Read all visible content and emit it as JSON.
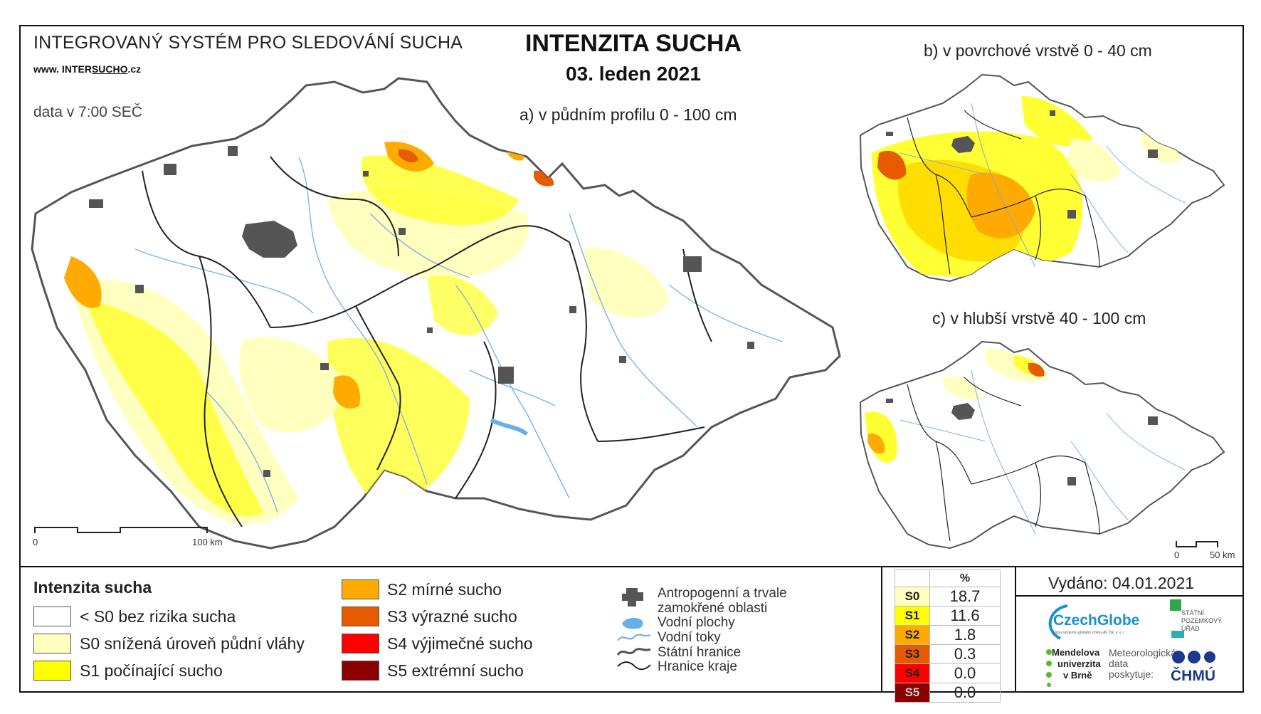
{
  "header": {
    "system_title": "INTEGROVANÝ SYSTÉM PRO SLEDOVÁNÍ SUCHA",
    "website_prefix": "www. INTER",
    "website_brand": "SUCHO",
    "website_suffix": ".cz",
    "data_time": "data v 7:00 SEČ",
    "main_title": "INTENZITA SUCHA",
    "date": "03. leden 2021"
  },
  "maps": {
    "a_label": "a) v půdním profilu 0 - 100 cm",
    "b_label": "b) v povrchové vrstvě 0 - 40 cm",
    "c_label": "c) v hlubší vrstvě 40 - 100 cm",
    "scale_main": {
      "start": "0",
      "end": "100 km"
    },
    "scale_small": {
      "start": "0",
      "end": "50 km"
    }
  },
  "legend": {
    "title": "Intenzita sucha",
    "classes": [
      {
        "label": "< S0 bez rizika sucha",
        "color": "#ffffff"
      },
      {
        "label": "S0 snížená úroveň půdní vláhy",
        "color": "#ffffc0"
      },
      {
        "label": "S1 počínající sucho",
        "color": "#ffff00"
      },
      {
        "label": "S2 mírné sucho",
        "color": "#ffaa00"
      },
      {
        "label": "S3 výrazné sucho",
        "color": "#e65a00"
      },
      {
        "label": "S4 výjimečné sucho",
        "color": "#ff0000"
      },
      {
        "label": "S5 extrémní sucho",
        "color": "#8b0000"
      }
    ],
    "symbols": [
      {
        "label1": "Antropogenní a trvale",
        "label2": "zamokřené oblasti",
        "icon": "urban-area-icon"
      },
      {
        "label1": "Vodní plochy",
        "icon": "water-body-icon"
      },
      {
        "label1": "Vodní toky",
        "icon": "river-icon"
      },
      {
        "label1": "Státní hranice",
        "icon": "state-border-icon"
      },
      {
        "label1": "Hranice kraje",
        "icon": "region-border-icon"
      }
    ]
  },
  "stats": {
    "header": "%",
    "rows": [
      {
        "cls": "S0",
        "value": "18.7",
        "color": "#ffffc0"
      },
      {
        "cls": "S1",
        "value": "11.6",
        "color": "#ffff00"
      },
      {
        "cls": "S2",
        "value": "1.8",
        "color": "#ffaa00"
      },
      {
        "cls": "S3",
        "value": "0.3",
        "color": "#e65a00"
      },
      {
        "cls": "S4",
        "value": "0.0",
        "color": "#ff0000"
      },
      {
        "cls": "S5",
        "value": "0.0",
        "color": "#8b0000"
      }
    ]
  },
  "footer": {
    "issued": "Vydáno: 04.01.2021",
    "czechglobe": "CzechGlobe",
    "czechglobe_sub": "Ústav výzkumu globální změny AV ČR, v. v. i.",
    "spu1": "STÁTNÍ",
    "spu2": "POZEMKOVÝ",
    "spu3": "ÚŘAD",
    "mendel1": "Mendelova",
    "mendel2": "univerzita",
    "mendel3": "v Brně",
    "meteo1": "Meteorologická",
    "meteo2": "data",
    "meteo3": "poskytuje:",
    "chmu": "ČHMÚ"
  }
}
